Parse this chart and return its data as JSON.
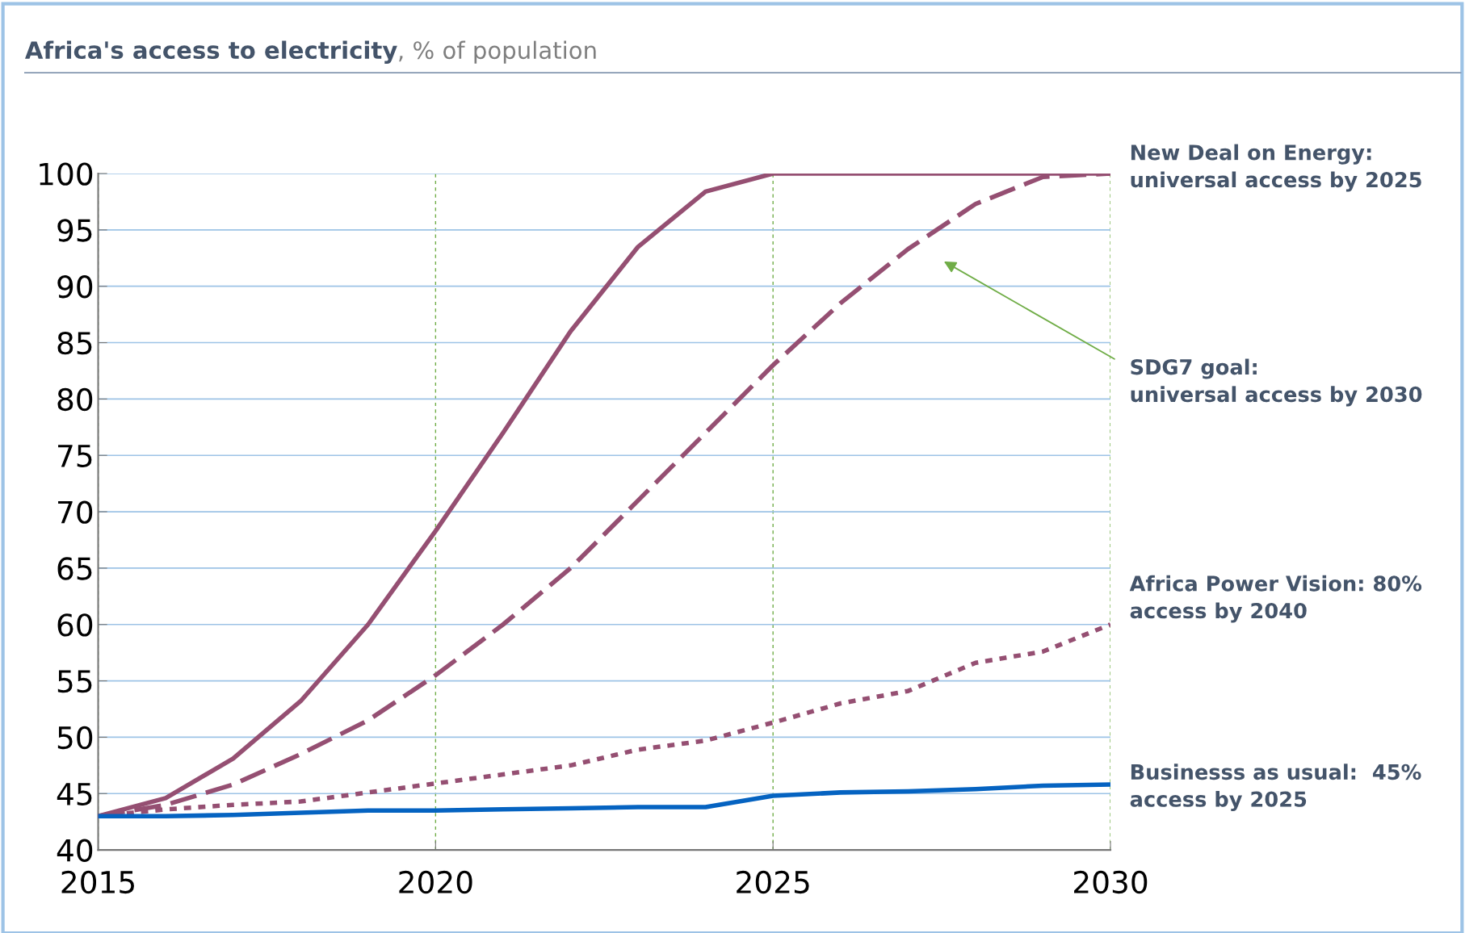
{
  "chart_data": {
    "type": "line",
    "title": "Africa's access to electricity",
    "subtitle": ", % of population",
    "x": [
      2015,
      2016,
      2017,
      2018,
      2019,
      2020,
      2021,
      2022,
      2023,
      2024,
      2025,
      2026,
      2027,
      2028,
      2029,
      2030
    ],
    "series": [
      {
        "color": "#954f72",
        "line_style": "solid",
        "values": [
          43,
          44.6,
          48.1,
          53.2,
          60,
          68.3,
          77,
          86,
          93.5,
          98.4,
          100,
          100,
          100,
          100,
          100,
          100
        ]
      },
      {
        "color": "#954f72",
        "line_style": "dashed",
        "values": [
          43,
          44,
          45.8,
          48.5,
          51.5,
          55.5,
          60,
          65,
          71,
          77,
          83,
          88.5,
          93.3,
          97.3,
          99.7,
          100
        ]
      },
      {
        "color": "#954f72",
        "line_style": "dotted",
        "values": [
          43,
          43.6,
          44,
          44.3,
          45.1,
          45.9,
          46.7,
          47.5,
          48.9,
          49.7,
          51.3,
          53,
          54.1,
          56.6,
          57.6,
          60
        ]
      },
      {
        "color": "#0563c1",
        "line_style": "solid",
        "values": [
          43,
          43,
          43.1,
          43.3,
          43.5,
          43.5,
          43.6,
          43.7,
          43.8,
          43.8,
          44.8,
          45.1,
          45.2,
          45.4,
          45.7,
          45.8
        ]
      }
    ],
    "annotations": [
      "New Deal on Energy:\nuniversal access by 2025",
      "SDG7 goal:\nuniversal access by 2030",
      "Africa Power Vision: 80%\naccess by 2040",
      "Businesss as usual:  45%\naccess by 2025"
    ],
    "xlim": [
      2015,
      2030
    ],
    "xticks": [
      2015,
      2020,
      2025,
      2030
    ],
    "ylim": [
      40,
      100
    ],
    "yticks": [
      40,
      45,
      50,
      55,
      60,
      65,
      70,
      75,
      80,
      85,
      90,
      95,
      100
    ],
    "grid": true,
    "marker": "none"
  }
}
